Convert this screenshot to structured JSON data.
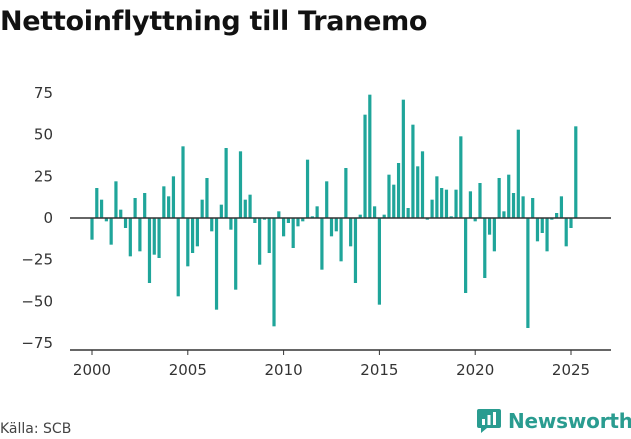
{
  "title": "Nettoinflyttning till Tranemo",
  "source": "Källa: SCB",
  "brand": {
    "name": "Newsworthy",
    "icon": "newsworthy-logo-icon"
  },
  "colors": {
    "bar": "#1fa59a",
    "zero_line": "#333333",
    "axis": "#333333",
    "brand": "#2a9c90"
  },
  "chart_data": {
    "type": "bar",
    "title": "Nettoinflyttning till Tranemo",
    "xlabel": "",
    "ylabel": "",
    "grid": false,
    "xlim": [
      1998.7,
      2027.0
    ],
    "ylim": [
      -77,
      77
    ],
    "xticks": [
      2000,
      2005,
      2010,
      2015,
      2020,
      2025
    ],
    "xtick_labels": [
      "2000",
      "2005",
      "2010",
      "2015",
      "2020",
      "2025"
    ],
    "yticks": [
      -75,
      -50,
      -25,
      0,
      25,
      50,
      75
    ],
    "ytick_labels": [
      "−75",
      "−50",
      "−25",
      "0",
      "25",
      "50",
      "75"
    ],
    "frequency": "quarterly",
    "x": [
      "2000-01",
      "2000-04",
      "2000-07",
      "2000-10",
      "2001-01",
      "2001-04",
      "2001-07",
      "2001-10",
      "2002-01",
      "2002-04",
      "2002-07",
      "2002-10",
      "2003-01",
      "2003-04",
      "2003-07",
      "2003-10",
      "2004-01",
      "2004-04",
      "2004-07",
      "2004-10",
      "2005-01",
      "2005-04",
      "2005-07",
      "2005-10",
      "2006-01",
      "2006-04",
      "2006-07",
      "2006-10",
      "2007-01",
      "2007-04",
      "2007-07",
      "2007-10",
      "2008-01",
      "2008-04",
      "2008-07",
      "2008-10",
      "2009-01",
      "2009-04",
      "2009-07",
      "2009-10",
      "2010-01",
      "2010-04",
      "2010-07",
      "2010-10",
      "2011-01",
      "2011-04",
      "2011-07",
      "2011-10",
      "2012-01",
      "2012-04",
      "2012-07",
      "2012-10",
      "2013-01",
      "2013-04",
      "2013-07",
      "2013-10",
      "2014-01",
      "2014-04",
      "2014-07",
      "2014-10",
      "2015-01",
      "2015-04",
      "2015-07",
      "2015-10",
      "2016-01",
      "2016-04",
      "2016-07",
      "2016-10",
      "2017-01",
      "2017-04",
      "2017-07",
      "2017-10",
      "2018-01",
      "2018-04",
      "2018-07",
      "2018-10",
      "2019-01",
      "2019-04",
      "2019-07",
      "2019-10",
      "2020-01",
      "2020-04",
      "2020-07",
      "2020-10",
      "2021-01",
      "2021-04",
      "2021-07",
      "2021-10",
      "2022-01",
      "2022-04",
      "2022-07",
      "2022-10",
      "2023-01",
      "2023-04",
      "2023-07",
      "2023-10",
      "2024-01",
      "2024-04",
      "2024-07",
      "2024-10",
      "2025-01",
      "2025-04"
    ],
    "values": [
      -13,
      18,
      11,
      -2,
      -16,
      22,
      5,
      -6,
      -23,
      12,
      -20,
      15,
      -39,
      -22,
      -24,
      19,
      13,
      25,
      -47,
      43,
      -29,
      -21,
      -17,
      11,
      24,
      -8,
      -55,
      8,
      42,
      -7,
      -43,
      40,
      11,
      14,
      -3,
      -28,
      -1,
      -21,
      -65,
      4,
      -11,
      -3,
      -18,
      -5,
      -2,
      35,
      1,
      7,
      -31,
      22,
      -11,
      -8,
      -26,
      30,
      -17,
      -39,
      2,
      62,
      74,
      7,
      -52,
      2,
      26,
      20,
      33,
      71,
      6,
      56,
      31,
      40,
      -1,
      11,
      25,
      18,
      17,
      1,
      17,
      49,
      -45,
      16,
      -2,
      21,
      -36,
      -10,
      -20,
      24,
      4,
      26,
      15,
      53,
      13,
      -66,
      12,
      -14,
      -9,
      -20,
      -1,
      3,
      13,
      -17,
      -6,
      55
    ]
  }
}
